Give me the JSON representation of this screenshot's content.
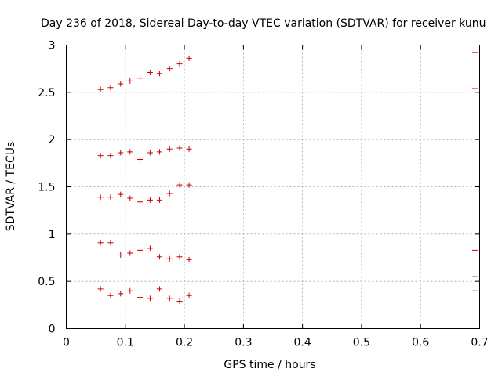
{
  "chart_data": {
    "type": "scatter",
    "title": "Day 236 of 2018, Sidereal Day-to-day VTEC variation (SDTVAR) for receiver kunu",
    "xlabel": "GPS time / hours",
    "ylabel": "SDTVAR / TECUs",
    "xlim": [
      0,
      0.7
    ],
    "ylim": [
      0,
      3
    ],
    "xticks": [
      "0",
      "0.1",
      "0.2",
      "0.3",
      "0.4",
      "0.5",
      "0.6",
      "0.7"
    ],
    "yticks": [
      "0",
      "0.5",
      "1",
      "1.5",
      "2",
      "2.5",
      "3"
    ],
    "xtick_values": [
      0,
      0.1,
      0.2,
      0.3,
      0.4,
      0.5,
      0.6,
      0.7
    ],
    "ytick_values": [
      0,
      0.5,
      1,
      1.5,
      2,
      2.5,
      3
    ],
    "grid": true,
    "marker": "+",
    "marker_color": "#cc0000",
    "series": [
      {
        "name": "points",
        "points": [
          [
            0.058,
            2.53
          ],
          [
            0.075,
            2.55
          ],
          [
            0.092,
            2.59
          ],
          [
            0.108,
            2.62
          ],
          [
            0.125,
            2.65
          ],
          [
            0.142,
            2.71
          ],
          [
            0.158,
            2.7
          ],
          [
            0.175,
            2.75
          ],
          [
            0.192,
            2.8
          ],
          [
            0.208,
            2.86
          ],
          [
            0.692,
            2.92
          ],
          [
            0.692,
            2.54
          ],
          [
            0.058,
            1.83
          ],
          [
            0.075,
            1.83
          ],
          [
            0.092,
            1.86
          ],
          [
            0.108,
            1.87
          ],
          [
            0.125,
            1.79
          ],
          [
            0.142,
            1.86
          ],
          [
            0.158,
            1.87
          ],
          [
            0.175,
            1.9
          ],
          [
            0.192,
            1.91
          ],
          [
            0.208,
            1.9
          ],
          [
            0.058,
            1.39
          ],
          [
            0.075,
            1.39
          ],
          [
            0.092,
            1.42
          ],
          [
            0.108,
            1.38
          ],
          [
            0.125,
            1.34
          ],
          [
            0.142,
            1.36
          ],
          [
            0.158,
            1.36
          ],
          [
            0.175,
            1.43
          ],
          [
            0.192,
            1.52
          ],
          [
            0.208,
            1.52
          ],
          [
            0.058,
            0.91
          ],
          [
            0.075,
            0.91
          ],
          [
            0.092,
            0.78
          ],
          [
            0.108,
            0.8
          ],
          [
            0.125,
            0.83
          ],
          [
            0.142,
            0.85
          ],
          [
            0.158,
            0.76
          ],
          [
            0.175,
            0.74
          ],
          [
            0.192,
            0.76
          ],
          [
            0.208,
            0.73
          ],
          [
            0.692,
            0.83
          ],
          [
            0.692,
            0.55
          ],
          [
            0.058,
            0.42
          ],
          [
            0.075,
            0.35
          ],
          [
            0.092,
            0.37
          ],
          [
            0.108,
            0.4
          ],
          [
            0.125,
            0.33
          ],
          [
            0.142,
            0.32
          ],
          [
            0.158,
            0.42
          ],
          [
            0.175,
            0.32
          ],
          [
            0.192,
            0.29
          ],
          [
            0.208,
            0.35
          ],
          [
            0.692,
            0.4
          ]
        ]
      }
    ]
  }
}
